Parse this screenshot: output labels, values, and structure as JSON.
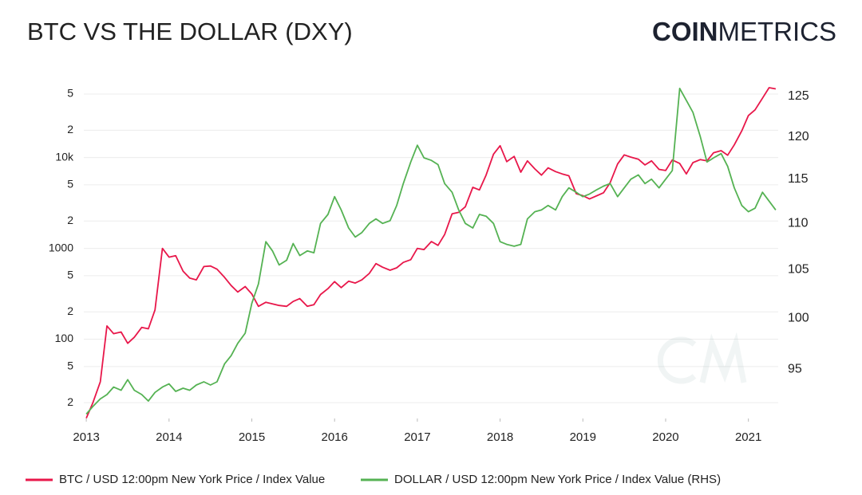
{
  "chart_data": {
    "type": "line",
    "title": "BTC VS THE DOLLAR (DXY)",
    "brand": [
      "COIN",
      "METRICS"
    ],
    "x": [
      2013,
      2013.08,
      2013.17,
      2013.25,
      2013.33,
      2013.42,
      2013.5,
      2013.58,
      2013.67,
      2013.75,
      2013.83,
      2013.92,
      2014,
      2014.08,
      2014.17,
      2014.25,
      2014.33,
      2014.42,
      2014.5,
      2014.58,
      2014.67,
      2014.75,
      2014.83,
      2014.92,
      2015,
      2015.08,
      2015.17,
      2015.25,
      2015.33,
      2015.42,
      2015.5,
      2015.58,
      2015.67,
      2015.75,
      2015.83,
      2015.92,
      2016,
      2016.08,
      2016.17,
      2016.25,
      2016.33,
      2016.42,
      2016.5,
      2016.58,
      2016.67,
      2016.75,
      2016.83,
      2016.92,
      2017,
      2017.08,
      2017.17,
      2017.25,
      2017.33,
      2017.42,
      2017.5,
      2017.58,
      2017.67,
      2017.75,
      2017.83,
      2017.92,
      2018,
      2018.08,
      2018.17,
      2018.25,
      2018.33,
      2018.42,
      2018.5,
      2018.58,
      2018.67,
      2018.75,
      2018.83,
      2018.92,
      2019,
      2019.08,
      2019.17,
      2019.25,
      2019.33,
      2019.42,
      2019.5,
      2019.58,
      2019.67,
      2019.75,
      2019.83,
      2019.92,
      2020,
      2020.08,
      2020.17,
      2020.25,
      2020.33,
      2020.42,
      2020.5,
      2020.58,
      2020.67,
      2020.75,
      2020.83,
      2020.92,
      2021,
      2021.08,
      2021.17,
      2021.25,
      2021.33
    ],
    "series": [
      {
        "name": "BTC / USD 12:00pm New York Price / Index Value",
        "color": "#e8174a",
        "axis": "y",
        "values": [
          13.5,
          20,
          34,
          140,
          115,
          120,
          90,
          105,
          135,
          130,
          210,
          1000,
          800,
          830,
          560,
          470,
          450,
          630,
          640,
          590,
          480,
          390,
          330,
          380,
          315,
          230,
          255,
          245,
          235,
          230,
          260,
          280,
          230,
          240,
          310,
          360,
          430,
          370,
          435,
          415,
          450,
          530,
          680,
          620,
          575,
          610,
          700,
          750,
          1000,
          970,
          1190,
          1080,
          1420,
          2400,
          2490,
          2870,
          4700,
          4400,
          6400,
          10900,
          13500,
          9000,
          10300,
          6900,
          9200,
          7500,
          6400,
          7700,
          7000,
          6600,
          6300,
          4000,
          3800,
          3500,
          3800,
          4100,
          5300,
          8500,
          10700,
          10100,
          9600,
          8300,
          9200,
          7400,
          7200,
          9400,
          8600,
          6600,
          8800,
          9500,
          9200,
          11300,
          11900,
          10600,
          13800,
          19700,
          29000,
          33500,
          45000,
          58800,
          57000
        ]
      },
      {
        "name": "DOLLAR / USD 12:00pm New York Price / Index Value (RHS)",
        "color": "#55b253",
        "axis": "y2",
        "values": [
          90.8,
          91.5,
          92.2,
          92.6,
          93.3,
          93,
          94,
          93,
          92.6,
          92,
          92.8,
          93.3,
          93.6,
          92.9,
          93.2,
          93,
          93.5,
          93.8,
          93.5,
          93.8,
          95.5,
          96.3,
          97.5,
          98.5,
          101.5,
          103.5,
          108,
          107,
          105.5,
          106,
          107.8,
          106.5,
          107,
          106.8,
          110,
          111,
          113,
          111.5,
          109.5,
          108.5,
          109,
          110,
          110.5,
          110,
          110.3,
          112,
          114.5,
          117,
          119,
          117.5,
          117.2,
          116.7,
          114.5,
          113.5,
          111.5,
          110,
          109.5,
          111,
          110.8,
          110,
          108,
          107.7,
          107.5,
          107.7,
          110.5,
          111.3,
          111.5,
          112,
          111.5,
          113,
          114,
          113.5,
          113,
          113.3,
          113.8,
          114.2,
          114.5,
          113,
          114,
          115,
          115.5,
          114.5,
          115,
          114,
          115,
          116,
          126,
          124.5,
          123,
          120,
          117,
          117.5,
          118,
          116.5,
          114,
          112,
          111.3,
          111.7,
          113.5,
          112.5,
          111.5
        ]
      }
    ],
    "xlim": [
      2012.97,
      2021.36
    ],
    "xticks": [
      2013,
      2014,
      2015,
      2016,
      2017,
      2018,
      2019,
      2020,
      2021
    ],
    "ylim": [
      13.4,
      65000
    ],
    "ylog": true,
    "yticks": [
      {
        "value": 20,
        "label": "2"
      },
      {
        "value": 50,
        "label": "5"
      },
      100,
      {
        "value": 200,
        "label": "2"
      },
      {
        "value": 500,
        "label": "5"
      },
      1000,
      {
        "value": 2000,
        "label": "2"
      },
      {
        "value": 5000,
        "label": "5"
      },
      {
        "value": 10000,
        "label": "10k"
      },
      {
        "value": 20000,
        "label": "2"
      },
      {
        "value": 50000,
        "label": "5"
      }
    ],
    "y2lim": [
      90.4,
      126.6
    ],
    "y2log": true,
    "y2ticks": [
      95,
      100,
      105,
      110,
      115,
      120,
      125
    ],
    "grid": true
  }
}
